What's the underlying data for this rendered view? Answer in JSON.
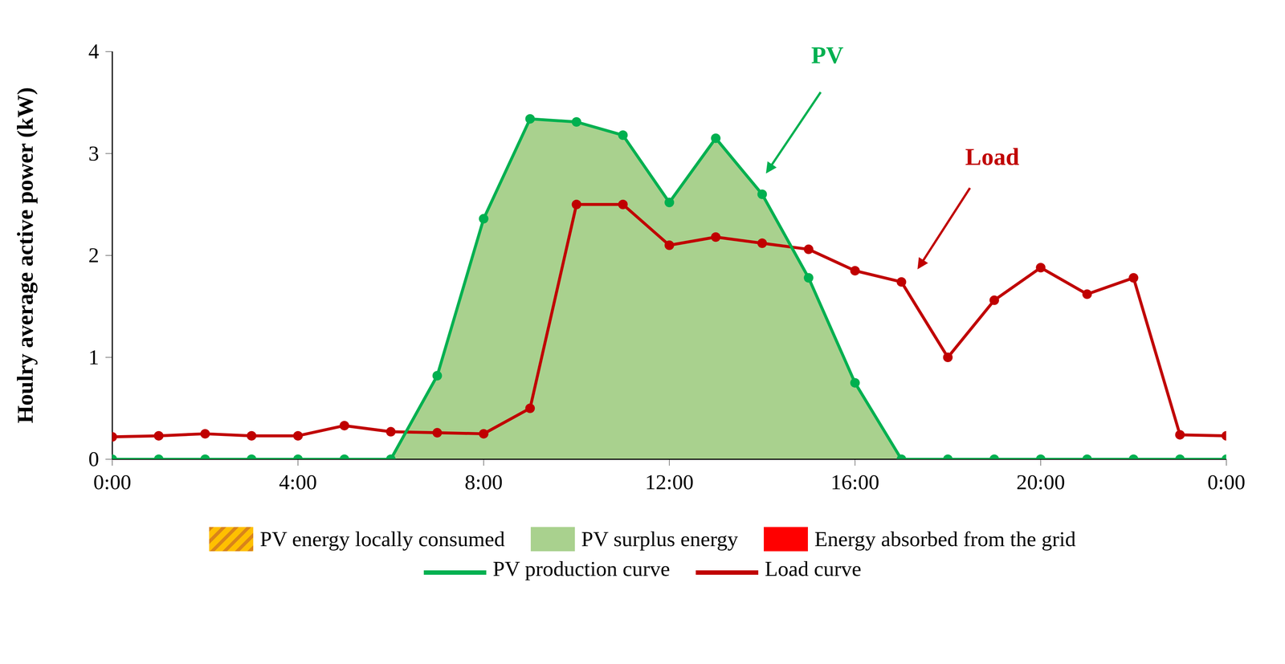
{
  "chart_data": {
    "type": "area",
    "y_label": "Houlry average active power (kW)",
    "x": [
      0,
      1,
      2,
      3,
      4,
      5,
      6,
      7,
      8,
      9,
      10,
      11,
      12,
      13,
      14,
      15,
      16,
      17,
      18,
      19,
      20,
      21,
      22,
      23,
      24
    ],
    "xlim": [
      0,
      24
    ],
    "xticks": [
      {
        "value": 0,
        "label": "0:00"
      },
      {
        "value": 4,
        "label": "4:00"
      },
      {
        "value": 8,
        "label": "8:00"
      },
      {
        "value": 12,
        "label": "12:00"
      },
      {
        "value": 16,
        "label": "16:00"
      },
      {
        "value": 20,
        "label": "20:00"
      },
      {
        "value": 24,
        "label": "0:00"
      }
    ],
    "ylim": [
      0,
      4
    ],
    "yticks": [
      0,
      1,
      2,
      3,
      4
    ],
    "grid": false,
    "series": [
      {
        "name": "PV production curve",
        "color": "#00b050",
        "type": "line",
        "marker": "circle",
        "values": [
          0,
          0,
          0,
          0,
          0,
          0,
          0,
          0.82,
          2.36,
          3.34,
          3.31,
          3.18,
          2.52,
          3.15,
          2.6,
          1.78,
          0.75,
          0,
          0,
          0,
          0,
          0,
          0,
          0,
          0
        ]
      },
      {
        "name": "Load curve",
        "color": "#c00000",
        "type": "line",
        "marker": "circle",
        "values": [
          0.22,
          0.23,
          0.25,
          0.23,
          0.23,
          0.33,
          0.27,
          0.26,
          0.25,
          0.5,
          2.5,
          2.5,
          2.1,
          2.18,
          2.12,
          2.06,
          1.85,
          1.74,
          1.0,
          1.56,
          1.88,
          1.62,
          1.78,
          0.24,
          0.23
        ]
      }
    ],
    "areas": [
      {
        "name": "PV energy locally consumed",
        "color": "#ffc000"
      },
      {
        "name": "PV surplus energy",
        "color": "#a9d18e"
      },
      {
        "name": "Energy absorbed from the grid",
        "color": "#ff0000"
      }
    ],
    "annotations": [
      {
        "text": "PV",
        "color": "#00b050"
      },
      {
        "text": "Load",
        "color": "#c00000"
      }
    ]
  }
}
